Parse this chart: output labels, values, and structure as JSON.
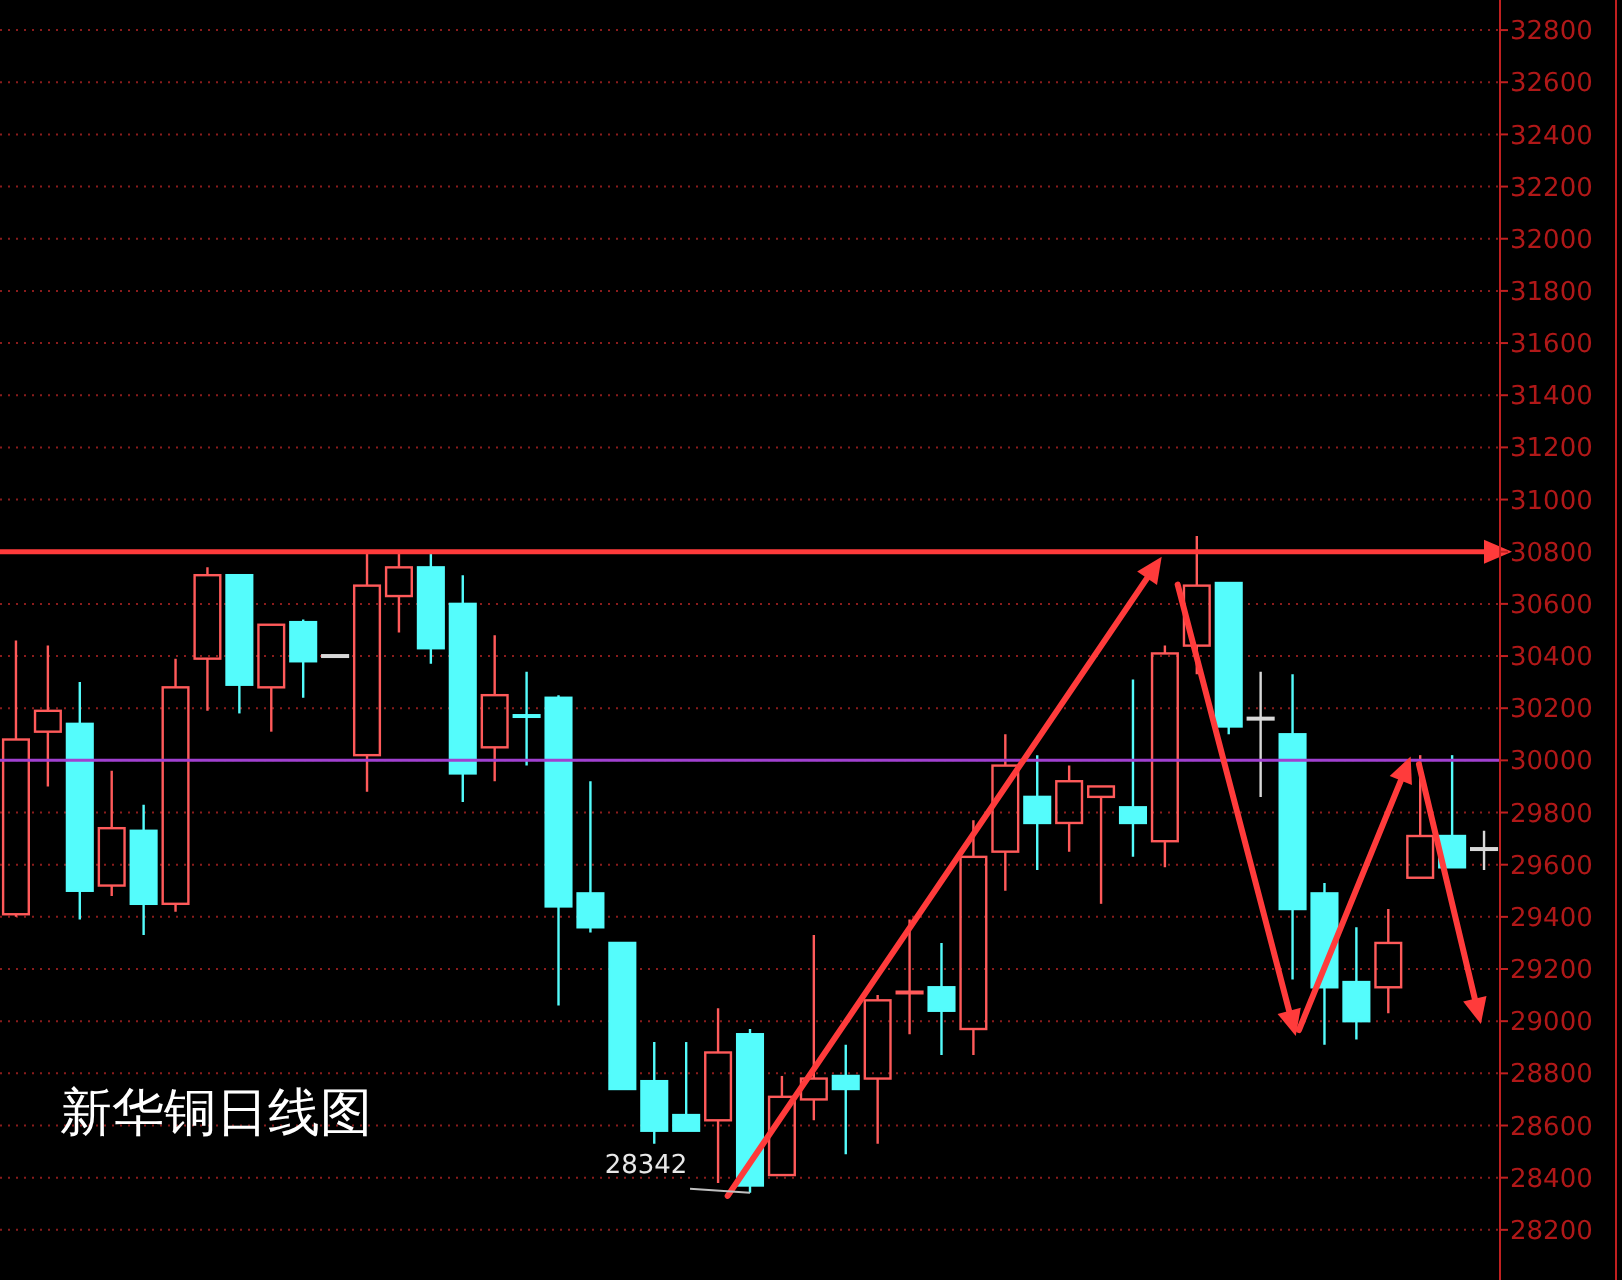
{
  "chart_data": {
    "type": "candlestick",
    "title": "新华铜日线图",
    "categories": [
      null,
      null,
      null,
      null,
      null,
      null,
      null,
      null,
      null,
      null,
      null,
      null,
      null,
      null,
      null,
      null,
      null,
      null,
      null,
      null,
      null,
      null,
      null,
      null,
      null,
      null,
      null,
      null,
      null,
      null,
      null,
      null,
      null,
      null,
      null,
      null,
      null,
      null,
      null,
      null,
      null,
      null,
      null,
      null,
      null,
      null,
      null
    ],
    "ohlc": [
      [
        29410,
        30460,
        29400,
        30080
      ],
      [
        30110,
        30440,
        29900,
        30190
      ],
      [
        30140,
        30300,
        29390,
        29500
      ],
      [
        29520,
        29960,
        29480,
        29740
      ],
      [
        29730,
        29830,
        29330,
        29450
      ],
      [
        29450,
        30390,
        29420,
        30280
      ],
      [
        30390,
        30740,
        30190,
        30710
      ],
      [
        30710,
        30710,
        30180,
        30290
      ],
      [
        30280,
        30520,
        30110,
        30520
      ],
      [
        30530,
        30540,
        30240,
        30380
      ],
      [
        30400,
        30400,
        30400,
        30400
      ],
      [
        30020,
        30800,
        29880,
        30670
      ],
      [
        30630,
        30800,
        30490,
        30740
      ],
      [
        30740,
        30800,
        30370,
        30430
      ],
      [
        30600,
        30710,
        29840,
        29950
      ],
      [
        30050,
        30480,
        29920,
        30250
      ],
      [
        30170,
        30340,
        29980,
        30170
      ],
      [
        30240,
        30250,
        29060,
        29440
      ],
      [
        29490,
        29920,
        29340,
        29360
      ],
      [
        29300,
        29300,
        28740,
        28740
      ],
      [
        28770,
        28920,
        28530,
        28580
      ],
      [
        28640,
        28920,
        28580,
        28580
      ],
      [
        28620,
        29050,
        28380,
        28880
      ],
      [
        28950,
        28970,
        28342,
        28370
      ],
      [
        28410,
        28790,
        28410,
        28710
      ],
      [
        28700,
        29330,
        28620,
        28780
      ],
      [
        28790,
        28910,
        28490,
        28740
      ],
      [
        28780,
        29100,
        28530,
        29080
      ],
      [
        29110,
        29390,
        28950,
        29110
      ],
      [
        29130,
        29300,
        28870,
        29040
      ],
      [
        28970,
        29770,
        28870,
        29630
      ],
      [
        29650,
        30100,
        29500,
        29980
      ],
      [
        29860,
        30020,
        29580,
        29760
      ],
      [
        29760,
        29980,
        29650,
        29920
      ],
      [
        29860,
        29900,
        29450,
        29900
      ],
      [
        29820,
        30310,
        29630,
        29760
      ],
      [
        29690,
        30440,
        29590,
        30410
      ],
      [
        30440,
        30860,
        30330,
        30670
      ],
      [
        30680,
        30680,
        30100,
        30130
      ],
      [
        30160,
        30340,
        29860,
        30160
      ],
      [
        30100,
        30330,
        29160,
        29430
      ],
      [
        29490,
        29530,
        28910,
        29130
      ],
      [
        29150,
        29360,
        28930,
        29000
      ],
      [
        29130,
        29430,
        29030,
        29300
      ],
      [
        29550,
        30020,
        29550,
        29710
      ],
      [
        29710,
        30020,
        29590,
        29590
      ],
      [
        29660,
        29730,
        29580,
        29660
      ]
    ],
    "colors": [
      "#ff5a5a",
      "#ff5a5a",
      "#54fcfc",
      "#ff5a5a",
      "#54fcfc",
      "#ff5a5a",
      "#ff5a5a",
      "#54fcfc",
      "#ff5a5a",
      "#54fcfc",
      "#d8d8d8",
      "#ff5a5a",
      "#ff5a5a",
      "#54fcfc",
      "#54fcfc",
      "#ff5a5a",
      "#54fcfc",
      "#54fcfc",
      "#54fcfc",
      "#54fcfc",
      "#54fcfc",
      "#54fcfc",
      "#ff5a5a",
      "#54fcfc",
      "#ff5a5a",
      "#ff5a5a",
      "#54fcfc",
      "#ff5a5a",
      "#ff5a5a",
      "#54fcfc",
      "#ff5a5a",
      "#ff5a5a",
      "#54fcfc",
      "#ff5a5a",
      "#ff5a5a",
      "#54fcfc",
      "#ff5a5a",
      "#ff5a5a",
      "#54fcfc",
      "#d8d8d8",
      "#54fcfc",
      "#54fcfc",
      "#54fcfc",
      "#ff5a5a",
      "#ff5a5a",
      "#54fcfc",
      "#d8d8d8"
    ],
    "ylim": [
      28000,
      32900
    ],
    "yticks": [
      28200,
      28400,
      28600,
      28800,
      29000,
      29200,
      29400,
      29600,
      29800,
      30000,
      30200,
      30400,
      30600,
      30800,
      31000,
      31200,
      31400,
      31600,
      31800,
      32000,
      32200,
      32400,
      32600,
      32800
    ],
    "grid": "y",
    "ref_lines": [
      {
        "axis": "y",
        "value": 30800,
        "color": "#ff3b3b"
      },
      {
        "axis": "y",
        "value": 30000,
        "color": "#a040d0"
      }
    ],
    "annotations": [
      "28342"
    ]
  }
}
